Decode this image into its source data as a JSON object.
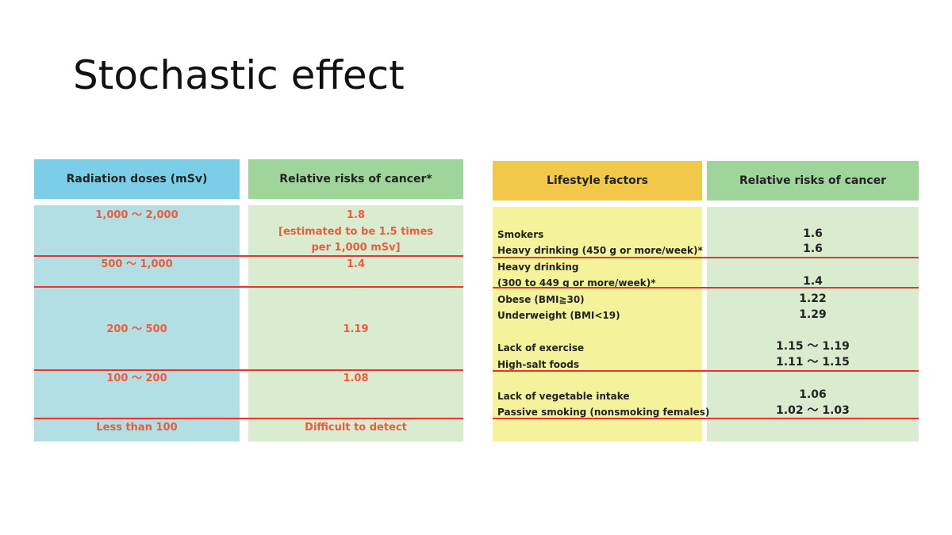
{
  "slide": {
    "title": "Stochastic effect"
  },
  "left_table": {
    "headers": [
      "Radiation doses (mSv)",
      "Relative risks of cancer*"
    ],
    "rows": [
      {
        "dose": "1,000 ～ 2,000",
        "risk_line1": "1.8",
        "risk_line2": "[estimated to be 1.5 times",
        "risk_line3": "per 1,000 mSv]"
      },
      {
        "dose": "500 ～ 1,000",
        "risk": "1.4"
      },
      {
        "dose": "200 ～ 500",
        "risk": "1.19"
      },
      {
        "dose": "100 ～ 200",
        "risk": "1.08"
      },
      {
        "dose": "Less than 100",
        "risk": "Difficult to detect"
      }
    ]
  },
  "right_table": {
    "headers": [
      "Lifestyle factors",
      "Relative risks of cancer"
    ],
    "factors": [
      "Smokers",
      "Heavy drinking (450 g or more/week)*",
      "Heavy drinking",
      "(300 to 449 g or more/week)*",
      "Obese (BMI≧30)",
      "Underweight (BMI<19)",
      "Lack of exercise",
      "High-salt foods",
      "Lack of vegetable intake",
      "Passive smoking (nonsmoking females)"
    ],
    "risks": [
      "1.6",
      "1.6",
      "1.4",
      "1.22",
      "1.29",
      "1.15 ～ 1.19",
      "1.11 ～ 1.15",
      "1.06",
      "1.02 ～ 1.03"
    ]
  },
  "colors": {
    "header_blue": "#7ccde8",
    "header_green": "#9fd59b",
    "header_orange": "#f2c84b",
    "body_blue": "#b2dfe4",
    "body_green": "#d9ecd0",
    "body_yellow": "#f4f29b",
    "divider_red": "#e8332f",
    "text_red": "#ee5a3a"
  }
}
